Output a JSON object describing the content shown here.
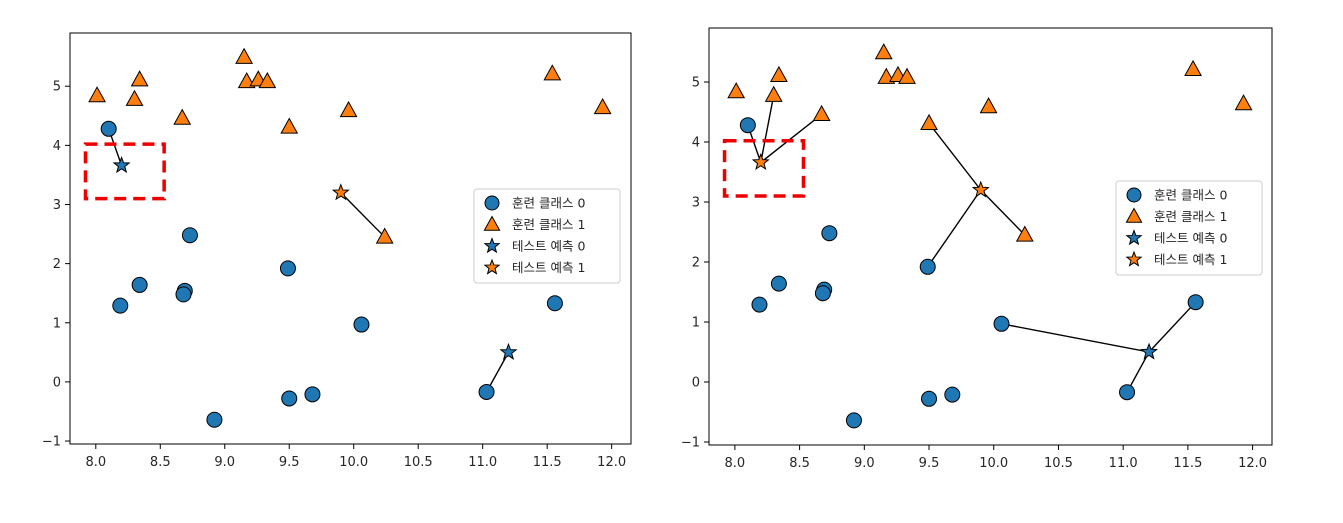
{
  "colors": {
    "class0": "#1f77b4",
    "class1": "#ff7f0e",
    "highlight": "#ee0000"
  },
  "chart_data": [
    {
      "type": "scatter",
      "n_neighbors": 1,
      "xlim": [
        7.8,
        12.15
      ],
      "ylim": [
        -1.05,
        5.9
      ],
      "xticks": [
        "8.0",
        "8.5",
        "9.0",
        "9.5",
        "10.0",
        "10.5",
        "11.0",
        "11.5",
        "12.0"
      ],
      "xtick_values": [
        8.0,
        8.5,
        9.0,
        9.5,
        10.0,
        10.5,
        11.0,
        11.5,
        12.0
      ],
      "yticks": [
        "−1",
        "0",
        "1",
        "2",
        "3",
        "4",
        "5"
      ],
      "ytick_values": [
        -1,
        0,
        1,
        2,
        3,
        4,
        5
      ],
      "grid": false,
      "legend_position": "right",
      "legend": [
        "훈련 클래스 0",
        "훈련 클래스 1",
        "테스트 예측 0",
        "테스트 예측 1"
      ],
      "train_class0": [
        [
          8.1,
          4.28
        ],
        [
          8.19,
          1.29
        ],
        [
          8.34,
          1.64
        ],
        [
          8.69,
          1.54
        ],
        [
          8.68,
          1.48
        ],
        [
          8.73,
          2.48
        ],
        [
          8.92,
          -0.64
        ],
        [
          9.49,
          1.92
        ],
        [
          9.5,
          -0.28
        ],
        [
          9.68,
          -0.21
        ],
        [
          10.06,
          0.97
        ],
        [
          11.03,
          -0.17
        ],
        [
          11.56,
          1.33
        ]
      ],
      "train_class1": [
        [
          8.01,
          4.84
        ],
        [
          8.34,
          5.11
        ],
        [
          8.3,
          4.78
        ],
        [
          8.67,
          4.46
        ],
        [
          9.15,
          5.49
        ],
        [
          9.17,
          5.08
        ],
        [
          9.26,
          5.11
        ],
        [
          9.33,
          5.08
        ],
        [
          9.5,
          4.31
        ],
        [
          9.96,
          4.59
        ],
        [
          10.24,
          2.45
        ],
        [
          11.54,
          5.21
        ],
        [
          11.93,
          4.64
        ]
      ],
      "test_points": [
        {
          "x": 8.2,
          "y": 3.66,
          "predicted": 0,
          "neighbors": [
            [
              8.1,
              4.28
            ]
          ]
        },
        {
          "x": 9.9,
          "y": 3.2,
          "predicted": 1,
          "neighbors": [
            [
              10.24,
              2.45
            ]
          ]
        },
        {
          "x": 11.2,
          "y": 0.5,
          "predicted": 0,
          "neighbors": [
            [
              11.03,
              -0.17
            ]
          ]
        }
      ],
      "highlight_box": {
        "x": [
          7.92,
          8.53
        ],
        "y": [
          3.1,
          4.02
        ]
      }
    },
    {
      "type": "scatter",
      "n_neighbors": 3,
      "xlim": [
        7.8,
        12.15
      ],
      "ylim": [
        -1.05,
        5.9
      ],
      "xticks": [
        "8.0",
        "8.5",
        "9.0",
        "9.5",
        "10.0",
        "10.5",
        "11.0",
        "11.5",
        "12.0"
      ],
      "xtick_values": [
        8.0,
        8.5,
        9.0,
        9.5,
        10.0,
        10.5,
        11.0,
        11.5,
        12.0
      ],
      "yticks": [
        "−1",
        "0",
        "1",
        "2",
        "3",
        "4",
        "5"
      ],
      "ytick_values": [
        -1,
        0,
        1,
        2,
        3,
        4,
        5
      ],
      "grid": false,
      "legend_position": "right",
      "legend": [
        "훈련 클래스 0",
        "훈련 클래스 1",
        "테스트 예측 0",
        "테스트 예측 1"
      ],
      "train_class0": [
        [
          8.1,
          4.28
        ],
        [
          8.19,
          1.29
        ],
        [
          8.34,
          1.64
        ],
        [
          8.69,
          1.54
        ],
        [
          8.68,
          1.48
        ],
        [
          8.73,
          2.48
        ],
        [
          8.92,
          -0.64
        ],
        [
          9.49,
          1.92
        ],
        [
          9.5,
          -0.28
        ],
        [
          9.68,
          -0.21
        ],
        [
          10.06,
          0.97
        ],
        [
          11.03,
          -0.17
        ],
        [
          11.56,
          1.33
        ]
      ],
      "train_class1": [
        [
          8.01,
          4.84
        ],
        [
          8.34,
          5.11
        ],
        [
          8.3,
          4.78
        ],
        [
          8.67,
          4.46
        ],
        [
          9.15,
          5.49
        ],
        [
          9.17,
          5.08
        ],
        [
          9.26,
          5.11
        ],
        [
          9.33,
          5.08
        ],
        [
          9.5,
          4.31
        ],
        [
          9.96,
          4.59
        ],
        [
          10.24,
          2.45
        ],
        [
          11.54,
          5.21
        ],
        [
          11.93,
          4.64
        ]
      ],
      "test_points": [
        {
          "x": 8.2,
          "y": 3.66,
          "predicted": 1,
          "neighbors": [
            [
              8.1,
              4.28
            ],
            [
              8.3,
              4.78
            ],
            [
              8.67,
              4.46
            ]
          ]
        },
        {
          "x": 9.9,
          "y": 3.2,
          "predicted": 1,
          "neighbors": [
            [
              9.5,
              4.31
            ],
            [
              9.49,
              1.92
            ],
            [
              10.24,
              2.45
            ]
          ]
        },
        {
          "x": 11.2,
          "y": 0.5,
          "predicted": 0,
          "neighbors": [
            [
              11.03,
              -0.17
            ],
            [
              11.56,
              1.33
            ],
            [
              10.06,
              0.97
            ]
          ]
        }
      ],
      "highlight_box": {
        "x": [
          7.92,
          8.53
        ],
        "y": [
          3.1,
          4.02
        ]
      }
    }
  ]
}
